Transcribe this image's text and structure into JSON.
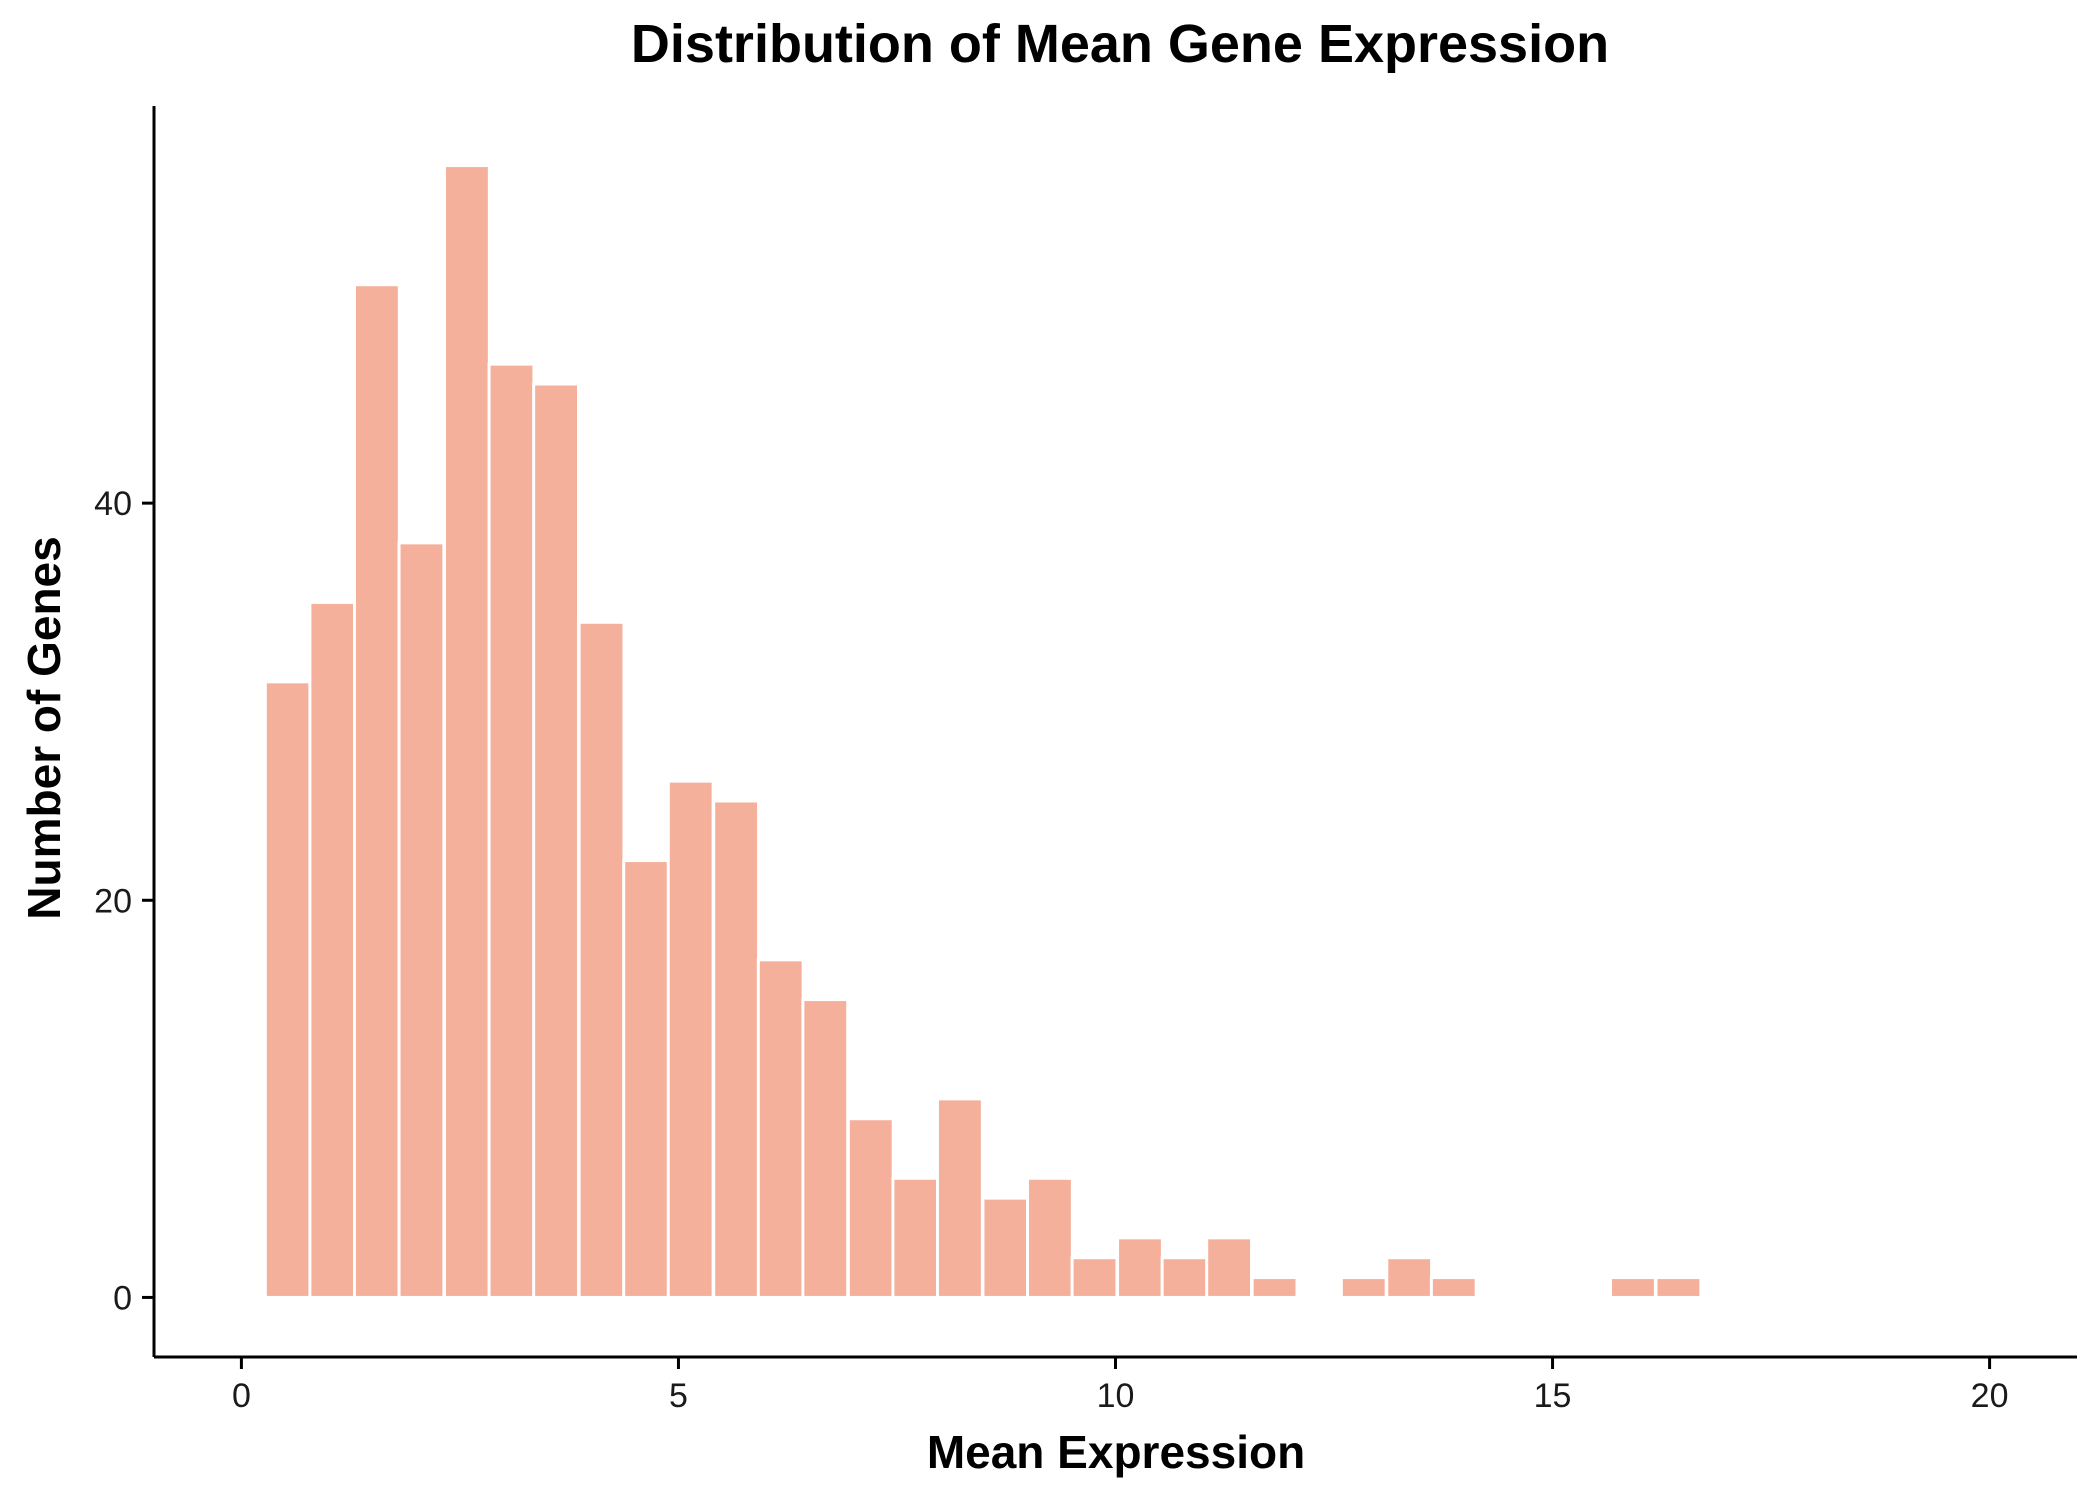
{
  "chart_data": {
    "type": "bar",
    "title": "Distribution of Mean Gene Expression",
    "xlabel": "Mean Expression",
    "ylabel": "Number of Genes",
    "xlim": [
      -1,
      21
    ],
    "ylim": [
      -3,
      60
    ],
    "x_ticks": [
      0,
      5,
      10,
      15,
      20
    ],
    "y_ticks": [
      0,
      20,
      40
    ],
    "bin_width": 0.513,
    "grid": false,
    "legend": "none",
    "bar_color": "#F4B09A",
    "bar_edge_color": "#FFFFFF",
    "bins": [
      {
        "x": 0.53,
        "count": 31
      },
      {
        "x": 1.04,
        "count": 35
      },
      {
        "x": 1.55,
        "count": 51
      },
      {
        "x": 2.06,
        "count": 38
      },
      {
        "x": 2.58,
        "count": 57
      },
      {
        "x": 3.09,
        "count": 47
      },
      {
        "x": 3.6,
        "count": 46
      },
      {
        "x": 4.12,
        "count": 34
      },
      {
        "x": 4.63,
        "count": 22
      },
      {
        "x": 5.14,
        "count": 26
      },
      {
        "x": 5.66,
        "count": 25
      },
      {
        "x": 6.17,
        "count": 17
      },
      {
        "x": 6.68,
        "count": 15
      },
      {
        "x": 7.2,
        "count": 9
      },
      {
        "x": 7.71,
        "count": 6
      },
      {
        "x": 8.22,
        "count": 10
      },
      {
        "x": 8.74,
        "count": 5
      },
      {
        "x": 9.25,
        "count": 6
      },
      {
        "x": 9.76,
        "count": 2
      },
      {
        "x": 10.28,
        "count": 3
      },
      {
        "x": 10.79,
        "count": 2
      },
      {
        "x": 11.3,
        "count": 3
      },
      {
        "x": 11.82,
        "count": 1
      },
      {
        "x": 12.33,
        "count": 0
      },
      {
        "x": 12.84,
        "count": 1
      },
      {
        "x": 13.36,
        "count": 2
      },
      {
        "x": 13.87,
        "count": 1
      },
      {
        "x": 14.38,
        "count": 0
      },
      {
        "x": 14.9,
        "count": 0
      },
      {
        "x": 15.41,
        "count": 0
      },
      {
        "x": 15.92,
        "count": 1
      },
      {
        "x": 16.44,
        "count": 1
      }
    ]
  }
}
